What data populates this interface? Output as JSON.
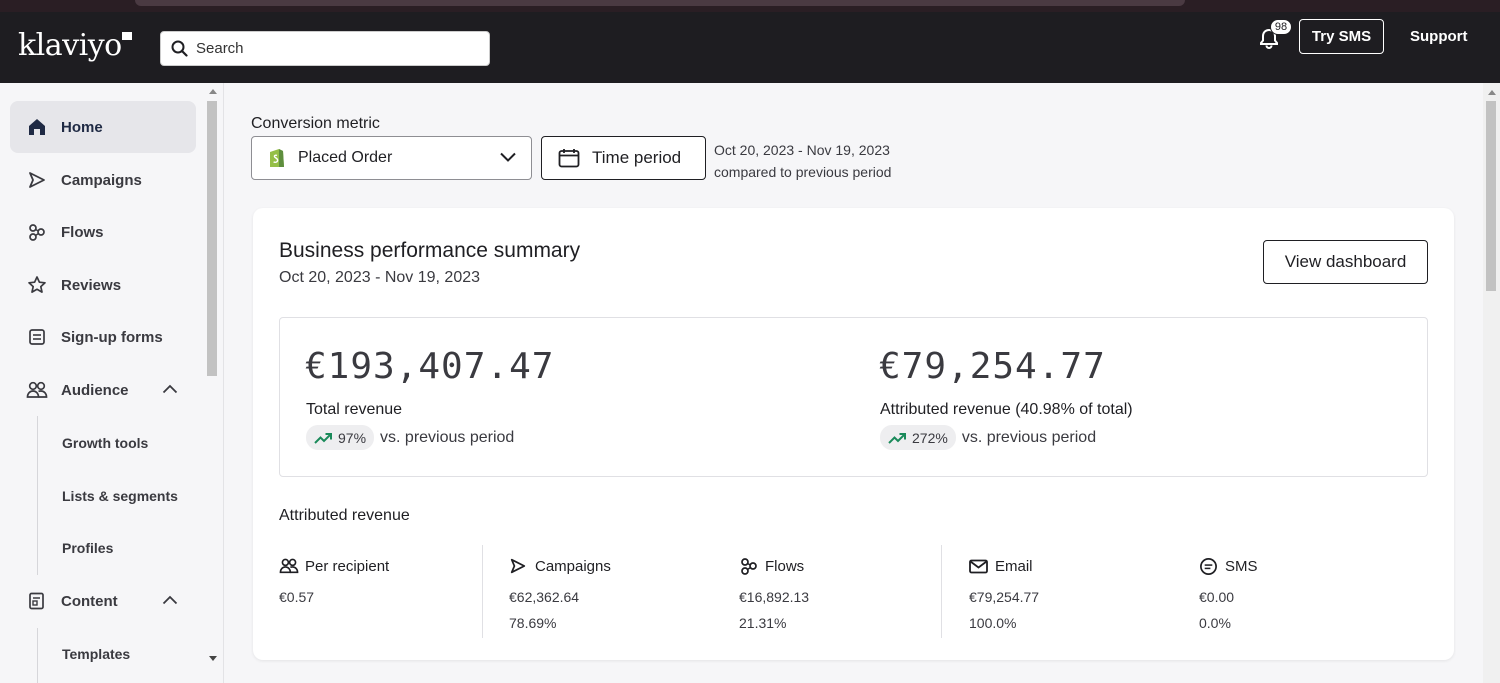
{
  "header": {
    "logo": "klaviyo",
    "search_placeholder": "Search",
    "notifications_count": "98",
    "try_sms_label": "Try SMS",
    "support_label": "Support"
  },
  "sidebar": {
    "items": [
      {
        "label": "Home",
        "icon": "home-icon",
        "active": true
      },
      {
        "label": "Campaigns",
        "icon": "send-icon"
      },
      {
        "label": "Flows",
        "icon": "flows-icon"
      },
      {
        "label": "Reviews",
        "icon": "star-icon"
      },
      {
        "label": "Sign-up forms",
        "icon": "form-icon"
      },
      {
        "label": "Audience",
        "icon": "people-icon",
        "expanded": true
      },
      {
        "label": "Content",
        "icon": "content-icon",
        "expanded": true
      }
    ],
    "audience_sub": [
      "Growth tools",
      "Lists & segments",
      "Profiles"
    ],
    "content_sub": [
      "Templates"
    ]
  },
  "filters": {
    "conversion_metric_label": "Conversion metric",
    "conversion_metric_value": "Placed Order",
    "time_period_label": "Time period",
    "date_range": "Oct 20, 2023 - Nov 19, 2023",
    "compare_text": "compared to previous period"
  },
  "summary": {
    "title": "Business performance summary",
    "date_range": "Oct 20, 2023 - Nov 19, 2023",
    "view_dashboard_label": "View dashboard",
    "total_revenue": {
      "value": "€193,407.47",
      "label": "Total revenue",
      "change": "97%",
      "change_text": "vs. previous period"
    },
    "attributed_revenue": {
      "value": "€79,254.77",
      "label": "Attributed revenue (40.98% of total)",
      "change": "272%",
      "change_text": "vs. previous period"
    },
    "trend_color": "#1a8a5a"
  },
  "attributed": {
    "title": "Attributed revenue",
    "columns": [
      {
        "label": "Per recipient",
        "icon": "people-icon",
        "value": "€0.57",
        "pct": ""
      },
      {
        "label": "Campaigns",
        "icon": "send-icon",
        "value": "€62,362.64",
        "pct": "78.69%"
      },
      {
        "label": "Flows",
        "icon": "flows-icon",
        "value": "€16,892.13",
        "pct": "21.31%"
      },
      {
        "label": "Email",
        "icon": "mail-icon",
        "value": "€79,254.77",
        "pct": "100.0%"
      },
      {
        "label": "SMS",
        "icon": "sms-icon",
        "value": "€0.00",
        "pct": "0.0%"
      }
    ]
  }
}
